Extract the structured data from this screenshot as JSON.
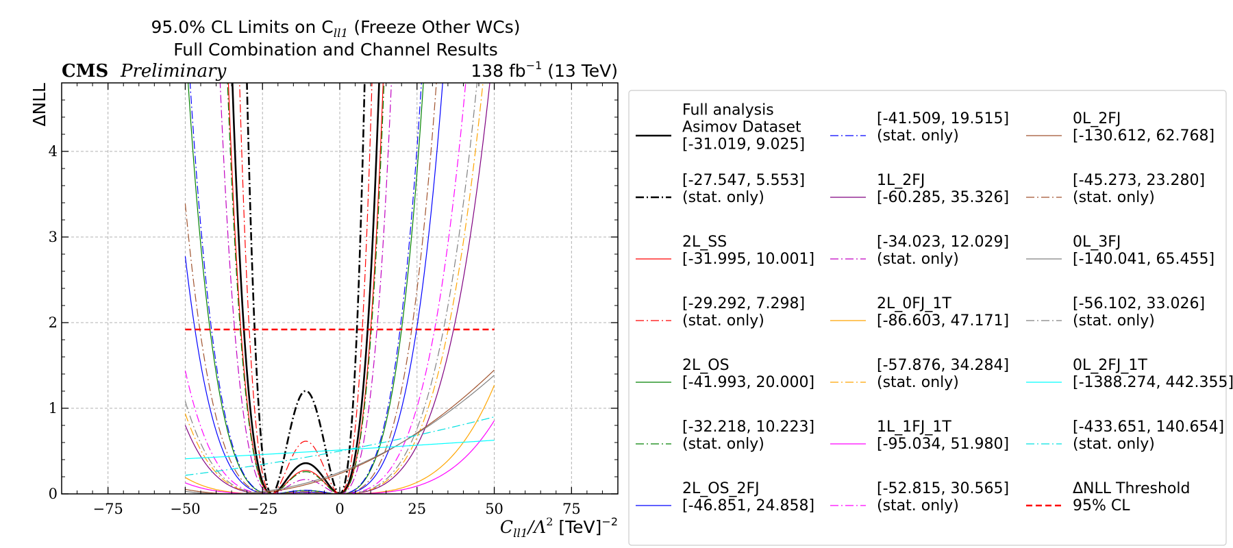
{
  "chart_data": {
    "type": "line",
    "title_line1": "95.0% CL Limits on C",
    "title_sub": "ll1",
    "title_line1_end": " (Freeze Other WCs)",
    "title_line2": "Full Combination and Channel Results",
    "experiment": "CMS",
    "status": "Preliminary",
    "lumi_value": "138 fb",
    "lumi_exp": "−1",
    "lumi_energy": " (13 TeV)",
    "ylabel": "ΔNLL",
    "xlabel_main": "C",
    "xlabel_sub": "ll1",
    "xlabel_rest": "/Λ",
    "xlabel_sq": "2",
    "xlabel_unit": " [TeV]",
    "xlabel_unit_exp": "−2",
    "xlim": [
      -90,
      90
    ],
    "ylim": [
      0,
      4.8
    ],
    "xticks": [
      -75,
      -50,
      -25,
      0,
      25,
      50,
      75
    ],
    "yticks": [
      0,
      1,
      2,
      3,
      4
    ],
    "grid": true,
    "threshold": 1.92,
    "legend_placement": "right outside",
    "series": [
      {
        "label_lines": [
          "Full analysis",
          "Asimov Dataset",
          "[-31.019, 9.025]"
        ],
        "color": "#000000",
        "dash": "solid",
        "width": 2.6,
        "lo": -31.019,
        "hi": 9.025,
        "bump": 0.52
      },
      {
        "label_lines": [
          "[-27.547, 5.553]",
          "(stat. only)"
        ],
        "color": "#000000",
        "dash": "dashdot",
        "width": 2.6,
        "lo": -27.547,
        "hi": 5.553,
        "bump": 1.48
      },
      {
        "label_lines": [
          "2L_SS",
          "[-31.995, 10.001]"
        ],
        "color": "#ff0000",
        "dash": "solid",
        "width": 1.2,
        "lo": -31.995,
        "hi": 10.001,
        "bump": 0.41
      },
      {
        "label_lines": [
          "[-29.292, 7.298]",
          "(stat. only)"
        ],
        "color": "#ff0000",
        "dash": "dashdot",
        "width": 1.2,
        "lo": -29.292,
        "hi": 7.298,
        "bump": 0.89
      },
      {
        "label_lines": [
          "2L_OS",
          "[-41.993, 20.000]"
        ],
        "color": "#008000",
        "dash": "solid",
        "width": 1.2,
        "lo": -41.993,
        "hi": 20.0,
        "bump": 0.22
      },
      {
        "label_lines": [
          "[-32.218, 10.223]",
          "(stat. only)"
        ],
        "color": "#008000",
        "dash": "dashdot",
        "width": 1.2,
        "lo": -32.218,
        "hi": 10.223,
        "bump": 0.3
      },
      {
        "label_lines": [
          "2L_OS_2FJ",
          "[-46.851, 24.858]"
        ],
        "color": "#0000ff",
        "dash": "solid",
        "width": 1.2,
        "lo": -46.851,
        "hi": 24.858,
        "bump": 0.06
      },
      {
        "label_lines": [
          "[-41.509, 19.515]",
          "(stat. only)"
        ],
        "color": "#0000ff",
        "dash": "dashdot",
        "width": 1.2,
        "lo": -41.509,
        "hi": 19.515,
        "bump": 0.12
      },
      {
        "label_lines": [
          "1L_2FJ",
          "[-60.285, 35.326]"
        ],
        "color": "#800080",
        "dash": "solid",
        "width": 1.2,
        "lo": -60.285,
        "hi": 35.326,
        "bump": 0.03
      },
      {
        "label_lines": [
          "[-34.023, 12.029]",
          "(stat. only)"
        ],
        "color": "#c000c0",
        "dash": "dashdot",
        "width": 1.2,
        "lo": -34.023,
        "hi": 12.029,
        "bump": 0.18
      },
      {
        "label_lines": [
          "2L_0FJ_1T",
          "[-86.603, 47.171]"
        ],
        "color": "#ffa500",
        "dash": "solid",
        "width": 1.2,
        "lo": -86.603,
        "hi": 47.171,
        "bump": 0.02
      },
      {
        "label_lines": [
          "[-57.876, 34.284]",
          "(stat. only)"
        ],
        "color": "#ffa500",
        "dash": "dashdot",
        "width": 1.2,
        "lo": -57.876,
        "hi": 34.284,
        "bump": 0.04
      },
      {
        "label_lines": [
          "1L_1FJ_1T",
          "[-95.034, 51.980]"
        ],
        "color": "#ff00ff",
        "dash": "solid",
        "width": 1.2,
        "lo": -95.034,
        "hi": 51.98,
        "bump": 0.01
      },
      {
        "label_lines": [
          "[-52.815, 30.565]",
          "(stat. only)"
        ],
        "color": "#ff00ff",
        "dash": "dashdot",
        "width": 1.2,
        "lo": -52.815,
        "hi": 30.565,
        "bump": 0.04
      },
      {
        "label_lines": [
          "0L_2FJ",
          "[-130.612, 62.768]"
        ],
        "color": "#a0522d",
        "dash": "solid",
        "width": 1.2,
        "lo": -130.612,
        "hi": 62.768,
        "bump": 0.0
      },
      {
        "label_lines": [
          "[-45.273, 23.280]",
          "(stat. only)"
        ],
        "color": "#a0522d",
        "dash": "dashdot",
        "width": 1.2,
        "lo": -45.273,
        "hi": 23.28,
        "bump": 0.06
      },
      {
        "label_lines": [
          "0L_3FJ",
          "[-140.041, 65.455]"
        ],
        "color": "#808080",
        "dash": "solid",
        "width": 1.2,
        "lo": -140.041,
        "hi": 65.455,
        "bump": 0.0
      },
      {
        "label_lines": [
          "[-56.102, 33.026]",
          "(stat. only)"
        ],
        "color": "#808080",
        "dash": "dashdot",
        "width": 1.2,
        "lo": -56.102,
        "hi": 33.026,
        "bump": 0.03
      },
      {
        "label_lines": [
          "0L_2FJ_1T",
          "[-1388.274, 442.355]"
        ],
        "color": "#00ffff",
        "dash": "solid",
        "width": 1.2,
        "lo": -1388.274,
        "hi": 442.355,
        "bump": 0.0
      },
      {
        "label_lines": [
          "[-433.651, 140.654]",
          "(stat. only)"
        ],
        "color": "#00e0e0",
        "dash": "dashdot",
        "width": 1.2,
        "lo": -433.651,
        "hi": 140.654,
        "bump": 0.0
      },
      {
        "label_lines": [
          "ΔNLL Threshold",
          "95% CL"
        ],
        "color": "#ff0000",
        "dash": "dashed",
        "width": 2.6,
        "threshold": true
      }
    ]
  }
}
